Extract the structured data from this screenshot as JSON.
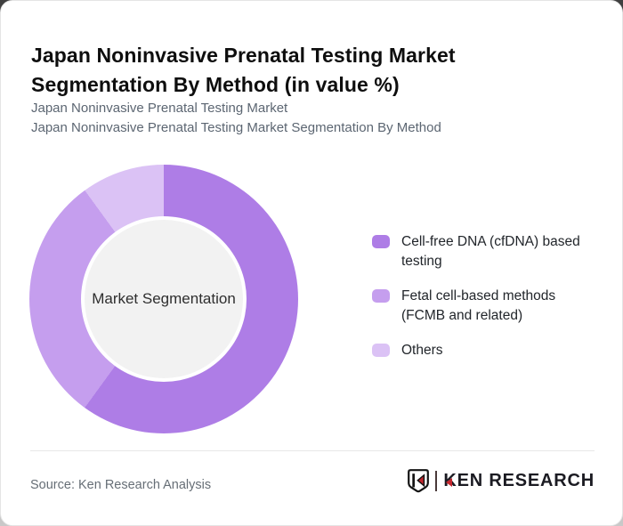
{
  "header": {
    "title": "Japan Noninvasive Prenatal Testing Market Segmentation By Method (in value %)",
    "subtitle_line1": "Japan Noninvasive Prenatal Testing Market",
    "subtitle_line2": "Japan Noninvasive Prenatal Testing Market Segmentation By Method"
  },
  "chart_data": {
    "type": "pie",
    "variant": "donut",
    "title": "Japan Noninvasive Prenatal Testing Market Segmentation By Method (in value %)",
    "center_label": "Market Segmentation",
    "categories": [
      "Cell-free DNA (cfDNA) based testing",
      "Fetal cell-based methods (FCMB and related)",
      "Others"
    ],
    "values": [
      60,
      30,
      10
    ],
    "value_unit": "%",
    "data_labels_shown": false,
    "start_angle_deg": 0,
    "direction": "clockwise",
    "colors": [
      "#AE7DE6",
      "#C59EEE",
      "#DBC2F5"
    ],
    "legend_position": "right"
  },
  "legend": {
    "items": [
      {
        "label": "Cell-free DNA (cfDNA) based testing",
        "color": "#AE7DE6"
      },
      {
        "label": "Fetal cell-based methods (FCMB and related)",
        "color": "#C59EEE"
      },
      {
        "label": "Others",
        "color": "#DBC2F5"
      }
    ]
  },
  "footer": {
    "source_label": "Source: Ken Research Analysis",
    "logo_text": "KEN RESEARCH"
  },
  "colors": {
    "slice_cfdna": "#AE7DE6",
    "slice_fcmb": "#C59EEE",
    "slice_others": "#DBC2F5",
    "donut_center_bg": "#F2F2F2",
    "title_text": "#0E0E0E",
    "subtitle_text": "#5C6672",
    "legend_text": "#22262B",
    "source_text": "#666E76",
    "logo_dark": "#1B1B22",
    "logo_red": "#C4272E",
    "separator": "#E8E8E8"
  }
}
